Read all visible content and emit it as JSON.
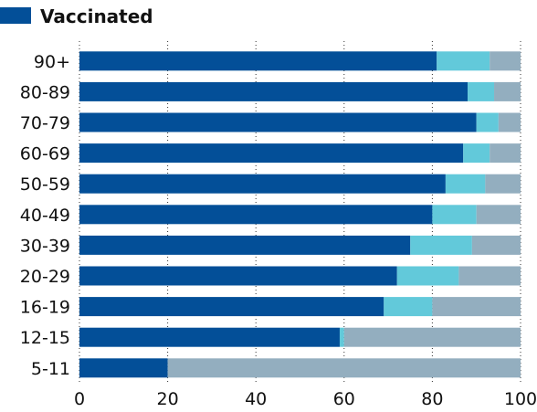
{
  "colors": {
    "vaccinated": "#034f98",
    "second": "#62c9da",
    "rest": "#93aebf",
    "grid": "#333333",
    "text": "#111111"
  },
  "chart_data": {
    "type": "bar",
    "orientation": "horizontal",
    "stacked": true,
    "legend": {
      "position": "top-left",
      "entries": [
        "Vaccinated"
      ]
    },
    "categories": [
      "90+",
      "80-89",
      "70-79",
      "60-69",
      "50-59",
      "40-49",
      "30-39",
      "20-29",
      "16-19",
      "12-15",
      "5-11"
    ],
    "series": [
      {
        "name": "Vaccinated",
        "color_key": "vaccinated",
        "values": [
          81,
          88,
          90,
          87,
          83,
          80,
          75,
          72,
          69,
          59,
          20
        ]
      },
      {
        "color_key": "second",
        "values": [
          12,
          6,
          5,
          6,
          9,
          10,
          14,
          14,
          11,
          1,
          0
        ]
      },
      {
        "color_key": "rest",
        "values": [
          7,
          6,
          5,
          7,
          8,
          10,
          11,
          14,
          20,
          40,
          80
        ]
      }
    ],
    "xlim": [
      0,
      100
    ],
    "xticks": [
      0,
      20,
      40,
      60,
      80,
      100
    ],
    "grid": "vertical dotted"
  }
}
